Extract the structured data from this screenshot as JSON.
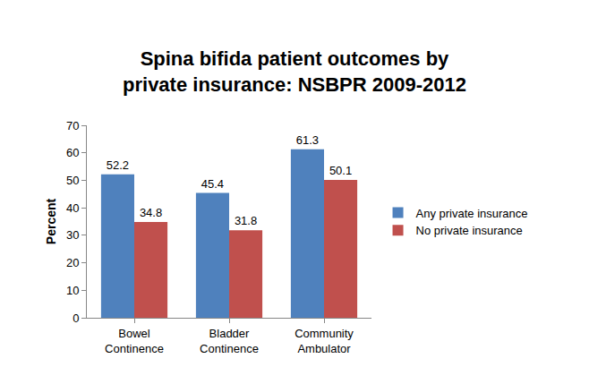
{
  "chart_data": {
    "type": "bar",
    "title": "Spina bifida patient outcomes by private insurance: NSBPR 2009-2012",
    "y_label": "Percent",
    "categories": [
      "Bowel Continence",
      "Bladder Continence",
      "Community Ambulator"
    ],
    "series": [
      {
        "name": "Any private insurance",
        "color": "#4f81bd",
        "values": [
          52.2,
          45.4,
          61.3
        ]
      },
      {
        "name": "No private insurance",
        "color": "#c0504d",
        "values": [
          34.8,
          31.8,
          50.1
        ]
      }
    ],
    "ylim": [
      0,
      70
    ],
    "yticks": [
      0,
      10,
      20,
      30,
      40,
      50,
      60,
      70
    ],
    "grid": false,
    "legend": "right",
    "data_labels": true
  }
}
